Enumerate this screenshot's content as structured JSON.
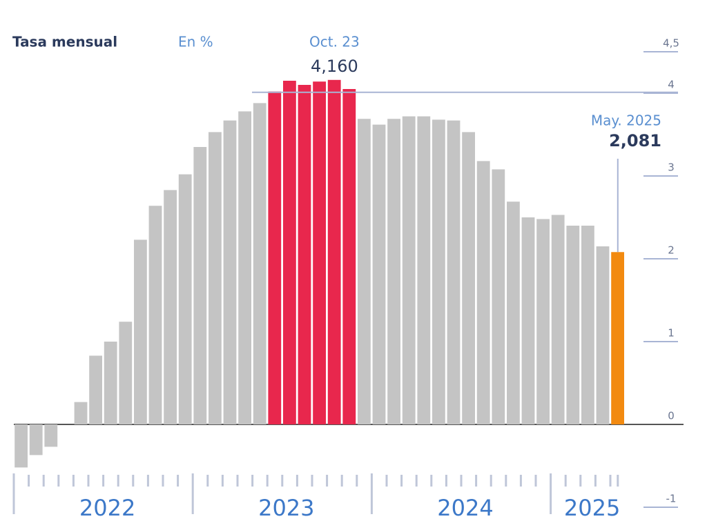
{
  "chart_data": {
    "type": "bar",
    "title": "Tasa mensual",
    "subtitle": "En %",
    "categories": [
      null,
      null,
      null,
      null,
      null,
      null,
      null,
      null,
      null,
      null,
      null,
      null,
      null,
      null,
      null,
      null,
      null,
      null,
      null,
      null,
      null,
      null,
      null,
      null,
      null,
      null,
      null,
      null,
      null,
      null,
      null,
      null,
      null,
      null,
      null,
      null,
      null,
      null,
      null,
      null,
      null
    ],
    "year_labels": [
      "2022",
      "2023",
      "2024",
      "2025"
    ],
    "values": [
      -0.52,
      -0.37,
      -0.27,
      0,
      0.27,
      0.83,
      1.0,
      1.24,
      2.23,
      2.64,
      2.83,
      3.02,
      3.35,
      3.53,
      3.67,
      3.78,
      3.88,
      4.02,
      4.15,
      4.1,
      4.14,
      4.16,
      4.05,
      3.69,
      3.62,
      3.69,
      3.72,
      3.72,
      3.68,
      3.67,
      3.53,
      3.18,
      3.08,
      2.69,
      2.5,
      2.48,
      2.53,
      2.4,
      2.4,
      2.15,
      2.081
    ],
    "colors": [
      "#c4c4c4",
      "#c4c4c4",
      "#c4c4c4",
      "#c4c4c4",
      "#c4c4c4",
      "#c4c4c4",
      "#c4c4c4",
      "#c4c4c4",
      "#c4c4c4",
      "#c4c4c4",
      "#c4c4c4",
      "#c4c4c4",
      "#c4c4c4",
      "#c4c4c4",
      "#c4c4c4",
      "#c4c4c4",
      "#c4c4c4",
      "#e8274d",
      "#e8274d",
      "#e8274d",
      "#e8274d",
      "#e8274d",
      "#e8274d",
      "#c4c4c4",
      "#c4c4c4",
      "#c4c4c4",
      "#c4c4c4",
      "#c4c4c4",
      "#c4c4c4",
      "#c4c4c4",
      "#c4c4c4",
      "#c4c4c4",
      "#c4c4c4",
      "#c4c4c4",
      "#c4c4c4",
      "#c4c4c4",
      "#c4c4c4",
      "#c4c4c4",
      "#c4c4c4",
      "#c4c4c4",
      "#f28a10"
    ],
    "value_labels": [
      null,
      null,
      null,
      null,
      null,
      null,
      null,
      null,
      null,
      null,
      null,
      null,
      null,
      null,
      null,
      null,
      null,
      null,
      null,
      null,
      null,
      "4,160",
      null,
      null,
      null,
      null,
      null,
      null,
      null,
      null,
      null,
      null,
      null,
      null,
      null,
      null,
      null,
      null,
      null,
      null,
      "2,081"
    ],
    "point_labels": [
      null,
      null,
      null,
      null,
      null,
      null,
      null,
      null,
      null,
      null,
      null,
      null,
      null,
      null,
      null,
      null,
      null,
      null,
      null,
      null,
      null,
      "Oct. 23",
      null,
      null,
      null,
      null,
      null,
      null,
      null,
      null,
      null,
      null,
      null,
      null,
      null,
      null,
      null,
      null,
      null,
      null,
      "May. 2025"
    ],
    "ylim": [
      -1,
      4.5
    ],
    "yticks": [
      -1,
      0,
      1,
      2,
      3,
      4,
      {
        "value": 4.5,
        "label": "4,5"
      }
    ]
  }
}
